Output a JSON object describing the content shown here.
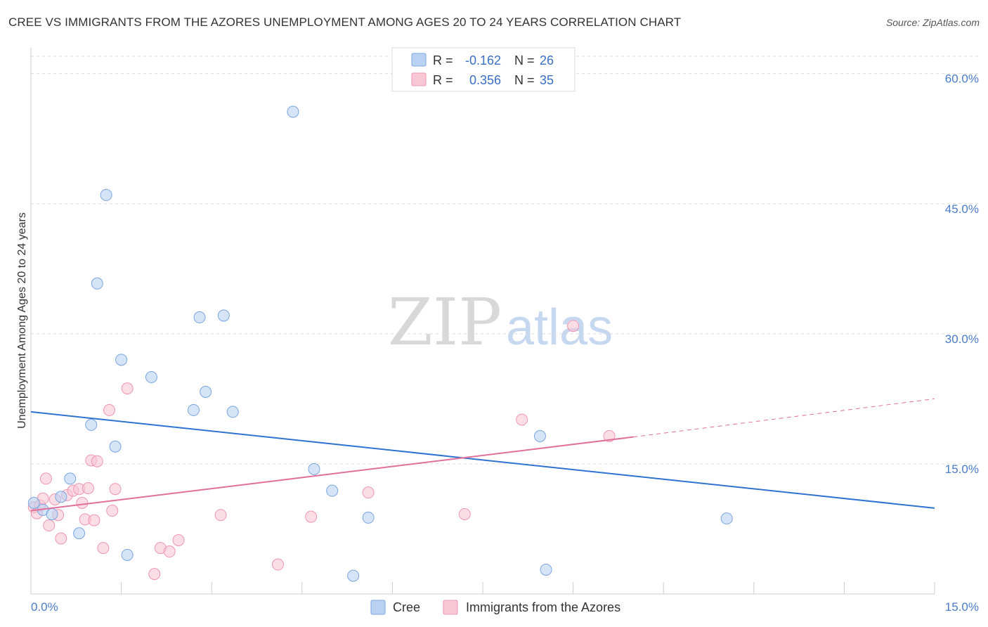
{
  "title": "CREE VS IMMIGRANTS FROM THE AZORES UNEMPLOYMENT AMONG AGES 20 TO 24 YEARS CORRELATION CHART",
  "source": "Source: ZipAtlas.com",
  "colors": {
    "cree_fill": "#b9d2f2",
    "cree_stroke": "#7aa5e0",
    "cree_line": "#2f72d0",
    "azores_fill": "#f8c7d6",
    "azores_stroke": "#ee95b0",
    "azores_line": "#e0709a",
    "grid": "#dcdcdc",
    "axis_text": "#4a7cc7"
  },
  "legend_stats": [
    {
      "r_label": "R =",
      "r_value": "-0.162",
      "n_label": "N =",
      "n_value": "26"
    },
    {
      "r_label": "R =",
      "r_value": "0.356",
      "n_label": "N =",
      "n_value": "35"
    }
  ],
  "watermark": {
    "zip": "ZIP",
    "atlas": "atlas"
  },
  "chart_data": {
    "type": "scatter",
    "title": "CREE VS IMMIGRANTS FROM THE AZORES UNEMPLOYMENT AMONG AGES 20 TO 24 YEARS CORRELATION CHART",
    "xlabel": "",
    "ylabel": "Unemployment Among Ages 20 to 24 years",
    "xlim": [
      0,
      15
    ],
    "ylim": [
      0,
      62
    ],
    "x_tick_labels": [
      "0.0%",
      "15.0%"
    ],
    "y_ticks": [
      15,
      30,
      45,
      60
    ],
    "y_tick_labels": [
      "15.0%",
      "30.0%",
      "45.0%",
      "60.0%"
    ],
    "legend_position": "bottom-center",
    "series": [
      {
        "name": "Cree",
        "r": -0.162,
        "n": 26,
        "trend": {
          "x0": 0,
          "y0": 21.0,
          "x1": 15,
          "y1": 9.9
        },
        "points": [
          [
            0.05,
            10.5
          ],
          [
            0.2,
            9.7
          ],
          [
            0.35,
            9.2
          ],
          [
            0.5,
            11.2
          ],
          [
            0.65,
            13.3
          ],
          [
            0.8,
            7.0
          ],
          [
            1.0,
            19.5
          ],
          [
            1.1,
            35.8
          ],
          [
            1.25,
            46.0
          ],
          [
            1.4,
            17.0
          ],
          [
            1.5,
            27.0
          ],
          [
            1.6,
            4.5
          ],
          [
            2.0,
            25.0
          ],
          [
            2.7,
            21.2
          ],
          [
            2.8,
            31.9
          ],
          [
            2.9,
            23.3
          ],
          [
            3.2,
            32.1
          ],
          [
            3.35,
            21.0
          ],
          [
            4.35,
            55.6
          ],
          [
            4.7,
            14.4
          ],
          [
            5.0,
            11.9
          ],
          [
            5.35,
            2.1
          ],
          [
            5.6,
            8.8
          ],
          [
            8.45,
            18.2
          ],
          [
            8.55,
            2.8
          ],
          [
            11.55,
            8.7
          ]
        ]
      },
      {
        "name": "Immigrants from the Azores",
        "r": 0.356,
        "n": 35,
        "trend": {
          "x0": 0,
          "y0": 9.6,
          "x1": 10.0,
          "y1": 18.1,
          "dash_x1": 15,
          "dash_y1": 22.5
        },
        "points": [
          [
            0.05,
            10.0
          ],
          [
            0.1,
            9.3
          ],
          [
            0.15,
            10.2
          ],
          [
            0.2,
            11.0
          ],
          [
            0.25,
            13.3
          ],
          [
            0.3,
            7.9
          ],
          [
            0.4,
            10.9
          ],
          [
            0.45,
            9.1
          ],
          [
            0.5,
            6.4
          ],
          [
            0.6,
            11.4
          ],
          [
            0.7,
            11.9
          ],
          [
            0.8,
            12.1
          ],
          [
            0.85,
            10.5
          ],
          [
            0.9,
            8.6
          ],
          [
            0.95,
            12.2
          ],
          [
            1.0,
            15.4
          ],
          [
            1.05,
            8.5
          ],
          [
            1.1,
            15.3
          ],
          [
            1.2,
            5.3
          ],
          [
            1.3,
            21.2
          ],
          [
            1.35,
            9.6
          ],
          [
            1.4,
            12.1
          ],
          [
            1.6,
            23.7
          ],
          [
            2.05,
            2.3
          ],
          [
            2.15,
            5.3
          ],
          [
            2.3,
            4.9
          ],
          [
            2.45,
            6.2
          ],
          [
            3.15,
            9.1
          ],
          [
            4.1,
            3.4
          ],
          [
            4.65,
            8.9
          ],
          [
            5.6,
            11.7
          ],
          [
            7.2,
            9.2
          ],
          [
            8.15,
            20.1
          ],
          [
            9.0,
            30.9
          ],
          [
            9.6,
            18.2
          ]
        ]
      }
    ]
  }
}
